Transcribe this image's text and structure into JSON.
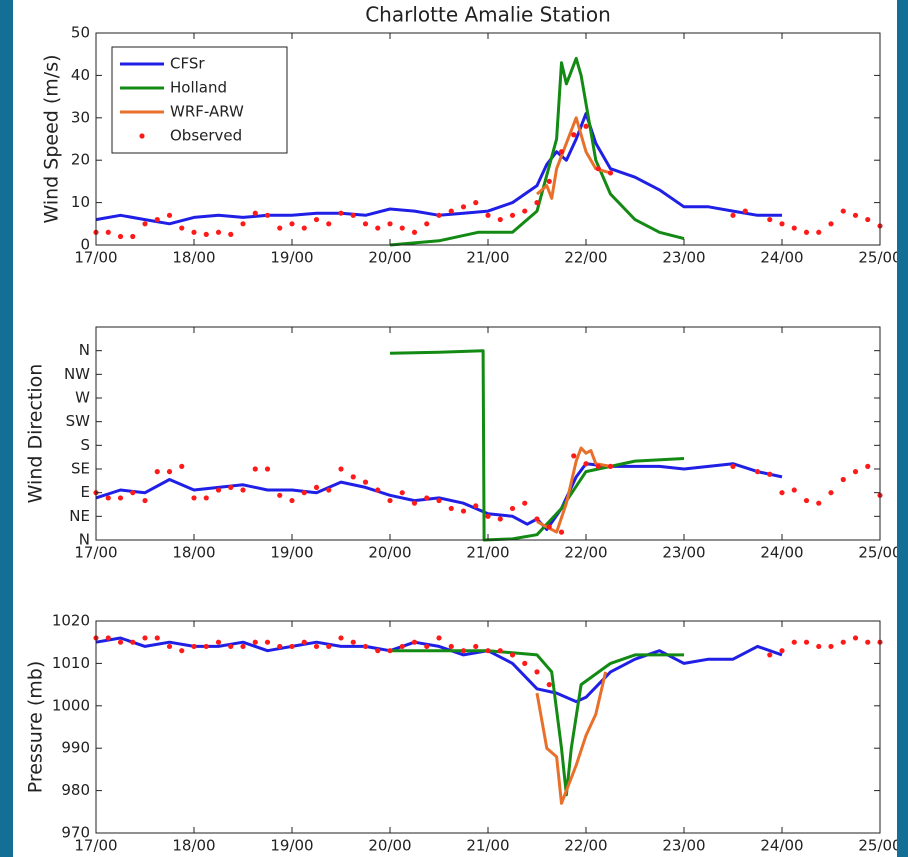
{
  "chart_data": [
    {
      "type": "line",
      "title": "Charlotte Amalie Station",
      "ylabel": "Wind Speed (m/s)",
      "legend": "upper left",
      "xlim": [
        17,
        25
      ],
      "xticks": [
        {
          "value": 17,
          "label": "17/00"
        },
        {
          "value": 18,
          "label": "18/00"
        },
        {
          "value": 19,
          "label": "19/00"
        },
        {
          "value": 20,
          "label": "20/00"
        },
        {
          "value": 21,
          "label": "21/00"
        },
        {
          "value": 22,
          "label": "22/00"
        },
        {
          "value": 23,
          "label": "23/00"
        },
        {
          "value": 24,
          "label": "24/00"
        },
        {
          "value": 25,
          "label": "25/00"
        }
      ],
      "ylim": [
        0,
        50
      ],
      "yticks": [
        0,
        10,
        20,
        30,
        40,
        50
      ],
      "series": [
        {
          "name": "CFSr",
          "color": "#1f1fe6",
          "mode": "lines",
          "x": [
            17,
            17.25,
            17.5,
            17.75,
            18,
            18.25,
            18.5,
            18.75,
            19,
            19.25,
            19.5,
            19.75,
            20,
            20.25,
            20.5,
            20.75,
            21,
            21.25,
            21.5,
            21.6,
            21.7,
            21.8,
            21.9,
            22,
            22.1,
            22.25,
            22.5,
            22.75,
            23,
            23.25,
            23.5,
            23.75,
            24
          ],
          "values": [
            6,
            7,
            6,
            5,
            6.5,
            7,
            6.5,
            7,
            7,
            7.5,
            7.5,
            7,
            8.5,
            8,
            7,
            7.5,
            8,
            10,
            14,
            19,
            22,
            20,
            25,
            31,
            24,
            18,
            16,
            13,
            9,
            9,
            8,
            7,
            7
          ]
        },
        {
          "name": "Holland",
          "color": "#138a13",
          "mode": "lines",
          "x": [
            20,
            20.5,
            20.9,
            21.25,
            21.5,
            21.7,
            21.75,
            21.8,
            21.9,
            21.95,
            22.1,
            22.25,
            22.5,
            22.75,
            23
          ],
          "values": [
            0,
            1,
            3,
            3,
            8,
            25,
            43,
            38,
            44,
            40,
            20,
            12,
            6,
            3,
            1.5
          ]
        },
        {
          "name": "WRF-ARW",
          "color": "#e8702a",
          "mode": "lines",
          "x": [
            21.5,
            21.6,
            21.65,
            21.7,
            21.8,
            21.9,
            21.95,
            22,
            22.1,
            22.25
          ],
          "values": [
            12,
            14,
            11,
            18,
            24,
            30,
            26,
            22,
            18,
            17
          ]
        },
        {
          "name": "Observed",
          "color": "#ff1a1a",
          "mode": "markers",
          "x": [
            17,
            17.125,
            17.25,
            17.375,
            17.5,
            17.625,
            17.75,
            17.875,
            18,
            18.125,
            18.25,
            18.375,
            18.5,
            18.625,
            18.75,
            18.875,
            19,
            19.125,
            19.25,
            19.375,
            19.5,
            19.625,
            19.75,
            19.875,
            20,
            20.125,
            20.25,
            20.375,
            20.5,
            20.625,
            20.75,
            20.875,
            21,
            21.125,
            21.25,
            21.375,
            21.5,
            21.625,
            21.75,
            21.875,
            22,
            22.125,
            22.25,
            23.5,
            23.625,
            23.875,
            24,
            24.125,
            24.25,
            24.375,
            24.5,
            24.625,
            24.75,
            24.875,
            25
          ],
          "values": [
            3,
            3,
            2,
            2,
            5,
            6,
            7,
            4,
            3,
            2.5,
            3,
            2.5,
            5,
            7.5,
            7,
            4,
            5,
            4,
            6,
            5,
            7.5,
            7,
            5,
            4,
            5,
            4,
            3,
            5,
            7,
            8,
            9,
            10,
            7,
            6,
            7,
            8,
            10,
            15,
            22,
            26,
            28,
            18,
            17,
            7,
            8,
            6,
            5,
            4,
            3,
            3,
            5,
            8,
            7,
            6,
            4.5
          ]
        }
      ]
    },
    {
      "type": "line",
      "ylabel": "Wind Direction",
      "xlim": [
        17,
        25
      ],
      "xticks": [
        {
          "value": 17,
          "label": "17/00"
        },
        {
          "value": 18,
          "label": "18/00"
        },
        {
          "value": 19,
          "label": "19/00"
        },
        {
          "value": 20,
          "label": "20/00"
        },
        {
          "value": 21,
          "label": "21/00"
        },
        {
          "value": 22,
          "label": "22/00"
        },
        {
          "value": 23,
          "label": "23/00"
        },
        {
          "value": 24,
          "label": "24/00"
        },
        {
          "value": 25,
          "label": "25/00"
        }
      ],
      "ylim": [
        0,
        405
      ],
      "yticks": [
        {
          "value": 0,
          "label": "N"
        },
        {
          "value": 45,
          "label": "NE"
        },
        {
          "value": 90,
          "label": "E"
        },
        {
          "value": 135,
          "label": "SE"
        },
        {
          "value": 180,
          "label": "S"
        },
        {
          "value": 225,
          "label": "SW"
        },
        {
          "value": 270,
          "label": "W"
        },
        {
          "value": 315,
          "label": "NW"
        },
        {
          "value": 360,
          "label": "N"
        }
      ],
      "series": [
        {
          "color": "#1f1fe6",
          "mode": "lines",
          "x": [
            17,
            17.25,
            17.5,
            17.75,
            18,
            18.25,
            18.5,
            18.75,
            19,
            19.25,
            19.5,
            19.75,
            20,
            20.25,
            20.5,
            20.75,
            21,
            21.25,
            21.4,
            21.5,
            21.6,
            21.75,
            21.9,
            22,
            22.25,
            22.5,
            22.75,
            23,
            23.25,
            23.5,
            23.75,
            24
          ],
          "values": [
            80,
            95,
            90,
            115,
            95,
            100,
            105,
            95,
            95,
            90,
            110,
            100,
            85,
            75,
            80,
            70,
            50,
            45,
            30,
            40,
            20,
            60,
            120,
            145,
            140,
            140,
            140,
            135,
            140,
            145,
            130,
            120
          ]
        },
        {
          "color": "#138a13",
          "mode": "lines",
          "x": [
            20,
            20.5,
            20.95,
            20.96,
            21.25,
            21.5,
            21.75,
            22,
            22.5,
            23
          ],
          "values": [
            355,
            357,
            360,
            0,
            2,
            10,
            60,
            130,
            150,
            155
          ]
        },
        {
          "color": "#e8702a",
          "mode": "lines",
          "x": [
            21.5,
            21.6,
            21.7,
            21.8,
            21.9,
            21.95,
            22,
            22.05,
            22.1,
            22.25
          ],
          "values": [
            35,
            25,
            15,
            70,
            150,
            175,
            165,
            170,
            145,
            140
          ]
        },
        {
          "color": "#ff1a1a",
          "mode": "markers",
          "x": [
            17,
            17.125,
            17.25,
            17.375,
            17.5,
            17.625,
            17.75,
            17.875,
            18,
            18.125,
            18.25,
            18.375,
            18.5,
            18.625,
            18.75,
            18.875,
            19,
            19.125,
            19.25,
            19.375,
            19.5,
            19.625,
            19.75,
            19.875,
            20,
            20.125,
            20.25,
            20.375,
            20.5,
            20.625,
            20.75,
            20.875,
            21,
            21.125,
            21.25,
            21.375,
            21.5,
            21.625,
            21.75,
            21.875,
            22,
            22.125,
            22.25,
            23.5,
            23.75,
            23.875,
            24,
            24.125,
            24.25,
            24.375,
            24.5,
            24.625,
            24.75,
            24.875,
            25
          ],
          "values": [
            90,
            80,
            80,
            90,
            75,
            130,
            130,
            140,
            80,
            80,
            95,
            100,
            95,
            135,
            135,
            85,
            75,
            90,
            100,
            95,
            135,
            120,
            110,
            95,
            75,
            90,
            70,
            80,
            75,
            60,
            55,
            65,
            45,
            40,
            60,
            70,
            40,
            25,
            15,
            160,
            145,
            140,
            140,
            140,
            130,
            125,
            90,
            95,
            75,
            70,
            90,
            115,
            130,
            140,
            85
          ]
        }
      ]
    },
    {
      "type": "line",
      "ylabel": "Pressure (mb)",
      "xlim": [
        17,
        25
      ],
      "xticks": [
        {
          "value": 17,
          "label": "17/00"
        },
        {
          "value": 18,
          "label": "18/00"
        },
        {
          "value": 19,
          "label": "19/00"
        },
        {
          "value": 20,
          "label": "20/00"
        },
        {
          "value": 21,
          "label": "21/00"
        },
        {
          "value": 22,
          "label": "22/00"
        },
        {
          "value": 23,
          "label": "23/00"
        },
        {
          "value": 24,
          "label": "24/00"
        },
        {
          "value": 25,
          "label": "25/00"
        }
      ],
      "ylim": [
        970,
        1020
      ],
      "yticks": [
        970,
        980,
        990,
        1000,
        1010,
        1020
      ],
      "series": [
        {
          "color": "#1f1fe6",
          "mode": "lines",
          "x": [
            17,
            17.25,
            17.5,
            17.75,
            18,
            18.25,
            18.5,
            18.75,
            19,
            19.25,
            19.5,
            19.75,
            20,
            20.25,
            20.5,
            20.75,
            21,
            21.25,
            21.5,
            21.7,
            21.9,
            22,
            22.25,
            22.5,
            22.75,
            23,
            23.25,
            23.5,
            23.75,
            24
          ],
          "values": [
            1015,
            1016,
            1014,
            1015,
            1014,
            1014,
            1015,
            1013,
            1014,
            1015,
            1014,
            1014,
            1013,
            1015,
            1014,
            1012,
            1013,
            1010,
            1004,
            1003,
            1001,
            1002,
            1008,
            1011,
            1013,
            1010,
            1011,
            1011,
            1014,
            1012
          ]
        },
        {
          "color": "#138a13",
          "mode": "lines",
          "x": [
            20,
            20.5,
            21,
            21.5,
            21.65,
            21.75,
            21.8,
            21.85,
            21.95,
            22.25,
            22.5,
            23
          ],
          "values": [
            1013,
            1013,
            1013,
            1012,
            1008,
            990,
            979,
            990,
            1005,
            1010,
            1012,
            1012
          ]
        },
        {
          "color": "#e8702a",
          "mode": "lines",
          "x": [
            21.5,
            21.6,
            21.7,
            21.75,
            21.8,
            21.9,
            22,
            22.1,
            22.2
          ],
          "values": [
            1003,
            990,
            988,
            977,
            980,
            986,
            993,
            998,
            1008
          ]
        },
        {
          "color": "#ff1a1a",
          "mode": "markers",
          "x": [
            17,
            17.125,
            17.25,
            17.375,
            17.5,
            17.625,
            17.75,
            17.875,
            18,
            18.125,
            18.25,
            18.375,
            18.5,
            18.625,
            18.75,
            18.875,
            19,
            19.125,
            19.25,
            19.375,
            19.5,
            19.625,
            19.75,
            19.875,
            20,
            20.125,
            20.25,
            20.375,
            20.5,
            20.625,
            20.75,
            20.875,
            21,
            21.125,
            21.25,
            21.375,
            21.5,
            21.625,
            23.875,
            24,
            24.125,
            24.25,
            24.375,
            24.5,
            24.625,
            24.75,
            24.875,
            25
          ],
          "values": [
            1016,
            1016,
            1015,
            1015,
            1016,
            1016,
            1014,
            1013,
            1014,
            1014,
            1015,
            1014,
            1014,
            1015,
            1015,
            1014,
            1014,
            1015,
            1014,
            1014,
            1016,
            1015,
            1014,
            1013,
            1013,
            1014,
            1015,
            1014,
            1016,
            1014,
            1013,
            1014,
            1013,
            1013,
            1012,
            1010,
            1008,
            1005,
            1012,
            1013,
            1015,
            1015,
            1014,
            1014,
            1015,
            1016,
            1015,
            1015
          ]
        }
      ]
    }
  ]
}
